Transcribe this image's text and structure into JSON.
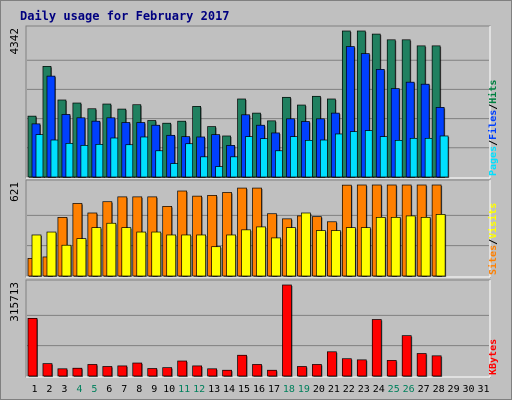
{
  "chart_data": {
    "type": "bar",
    "title": "Daily usage for February 2017",
    "categories": [
      "1",
      "2",
      "3",
      "4",
      "5",
      "6",
      "7",
      "8",
      "9",
      "10",
      "11",
      "12",
      "13",
      "14",
      "15",
      "16",
      "17",
      "18",
      "19",
      "20",
      "21",
      "22",
      "23",
      "24",
      "25",
      "26",
      "27",
      "28",
      "29",
      "30",
      "31"
    ],
    "weekend_days": [
      "4",
      "5",
      "11",
      "12",
      "18",
      "19",
      "25",
      "26"
    ],
    "panels": [
      {
        "name": "hits_files_pages",
        "max_label": "4342",
        "ymax": 4342,
        "legend": [
          {
            "text": "Pages",
            "color": "#00e0ff"
          },
          {
            "text": "/",
            "color": "#000000"
          },
          {
            "text": "Files",
            "color": "#0040ff"
          },
          {
            "text": "/",
            "color": "#000000"
          },
          {
            "text": "Hits",
            "color": "#008040"
          }
        ],
        "series": [
          {
            "name": "Hits",
            "color": "#208060",
            "values": [
              1810,
              3290,
              2290,
              2200,
              2030,
              2170,
              2020,
              2150,
              1680,
              1600,
              1660,
              2100,
              1500,
              1220,
              2320,
              1900,
              1670,
              2370,
              2140,
              2400,
              2320,
              4342,
              4342,
              4250,
              4080,
              4080,
              3900,
              3900,
              null,
              null,
              null
            ]
          },
          {
            "name": "Files",
            "color": "#0040ff",
            "values": [
              1580,
              3000,
              1860,
              1760,
              1660,
              1760,
              1620,
              1620,
              1540,
              1240,
              1200,
              1190,
              1260,
              940,
              1850,
              1540,
              1310,
              1730,
              1650,
              1730,
              1900,
              3880,
              3670,
              3200,
              2630,
              2820,
              2760,
              2070,
              null,
              null,
              null
            ]
          },
          {
            "name": "Pages",
            "color": "#00e0ff",
            "values": [
              1260,
              1100,
              1000,
              940,
              970,
              1160,
              960,
              1190,
              780,
              400,
              990,
              600,
              310,
              600,
              1200,
              1140,
              780,
              1200,
              1090,
              1100,
              1280,
              1350,
              1380,
              1200,
              1090,
              1150,
              1150,
              1220,
              null,
              null,
              null
            ]
          }
        ]
      },
      {
        "name": "visits_sites",
        "max_label": "621",
        "ymax": 621,
        "legend": [
          {
            "text": "Sites",
            "color": "#ff8000"
          },
          {
            "text": "/",
            "color": "#000000"
          },
          {
            "text": "Visits",
            "color": "#ffff00"
          }
        ],
        "series": [
          {
            "name": "Visits",
            "color": "#ff8000",
            "values": [
              120,
              130,
              400,
              495,
              430,
              507,
              540,
              540,
              540,
              475,
              580,
              545,
              550,
              570,
              600,
              600,
              425,
              390,
              410,
              405,
              370,
              620,
              621,
              621,
              621,
              621,
              621,
              621,
              null,
              null,
              null
            ]
          },
          {
            "name": "Sites",
            "color": "#ffff00",
            "values": [
              280,
              300,
              210,
              255,
              330,
              360,
              330,
              300,
              300,
              280,
              280,
              280,
              200,
              280,
              315,
              335,
              260,
              330,
              430,
              310,
              310,
              330,
              330,
              400,
              400,
              410,
              400,
              420,
              null,
              null,
              null
            ]
          }
        ]
      },
      {
        "name": "kbytes",
        "max_label": "315713",
        "ymax": 315713,
        "legend": [
          {
            "text": "KBytes",
            "color": "#ff0000"
          }
        ],
        "series": [
          {
            "name": "KBytes",
            "color": "#ff0000",
            "values": [
              200000,
              43000,
              25000,
              27000,
              40000,
              33000,
              35000,
              45000,
              26000,
              29000,
              52000,
              35000,
              25000,
              20000,
              72000,
              40000,
              20000,
              315713,
              33000,
              40000,
              84000,
              60000,
              56000,
              196000,
              54000,
              140000,
              78000,
              70000,
              null,
              null,
              null
            ]
          }
        ]
      }
    ],
    "xlim": [
      1,
      31
    ]
  },
  "colors": {
    "background": "#c0c0c0",
    "panel_background": "#c0c0c0",
    "gridline": "#808080",
    "weekday_label": "#000000",
    "weekend_label": "#00805c"
  }
}
